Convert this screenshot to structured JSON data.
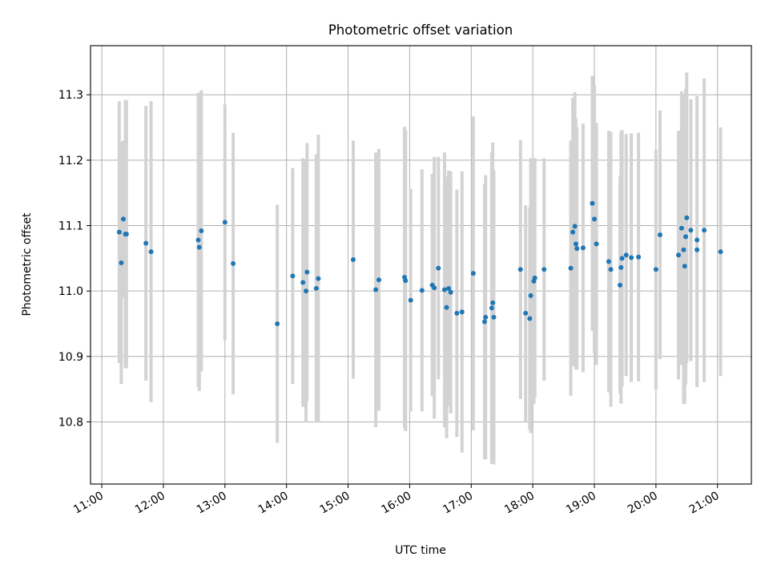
{
  "chart_data": {
    "type": "scatter",
    "title": "Photometric offset variation",
    "xlabel": "UTC time",
    "ylabel": "Photometric offset",
    "xlim": [
      "10:49",
      "21:33"
    ],
    "ylim": [
      10.705,
      11.375
    ],
    "grid": true,
    "x_ticks": [
      "11:00",
      "12:00",
      "13:00",
      "14:00",
      "15:00",
      "16:00",
      "17:00",
      "18:00",
      "19:00",
      "20:00",
      "21:00"
    ],
    "y_ticks": [
      "10.8",
      "10.9",
      "11.0",
      "11.1",
      "11.2",
      "11.3"
    ],
    "point_color": "#1f77b4",
    "errorbar_color": "#d3d3d3",
    "series": [
      {
        "x": [
          "11:17",
          "11:19",
          "11:21",
          "11:23",
          "11:24",
          "11:43",
          "11:48",
          "12:34",
          "12:35",
          "12:37",
          "13:00",
          "13:08",
          "13:51",
          "14:06",
          "14:16",
          "14:19",
          "14:20",
          "14:29",
          "14:31",
          "15:05",
          "15:27",
          "15:30",
          "15:55",
          "15:56",
          "16:01",
          "16:12",
          "16:22",
          "16:24",
          "16:28",
          "16:34",
          "16:36",
          "16:38",
          "16:40",
          "16:46",
          "16:51",
          "17:02",
          "17:13",
          "17:14",
          "17:20",
          "17:21",
          "17:22",
          "17:48",
          "17:53",
          "17:57",
          "17:58",
          "18:01",
          "18:02",
          "18:11",
          "18:37",
          "18:39",
          "18:41",
          "18:42",
          "18:43",
          "18:49",
          "18:58",
          "19:00",
          "19:02",
          "19:14",
          "19:16",
          "19:25",
          "19:26",
          "19:27",
          "19:31",
          "19:36",
          "19:43",
          "20:00",
          "20:04",
          "20:22",
          "20:25",
          "20:27",
          "20:28",
          "20:29",
          "20:30",
          "20:34",
          "20:40",
          "20:40",
          "20:47",
          "21:03"
        ],
        "y": [
          11.09,
          11.043,
          11.11,
          11.087,
          11.087,
          11.073,
          11.06,
          11.078,
          11.067,
          11.092,
          11.105,
          11.042,
          10.95,
          11.023,
          11.013,
          11.0,
          11.029,
          11.004,
          11.019,
          11.048,
          11.002,
          11.017,
          11.021,
          11.016,
          10.986,
          11.001,
          11.009,
          11.005,
          11.035,
          11.002,
          10.975,
          11.004,
          10.998,
          10.966,
          10.968,
          11.027,
          10.953,
          10.96,
          10.974,
          10.982,
          10.96,
          11.033,
          10.966,
          10.958,
          10.993,
          11.015,
          11.02,
          11.033,
          11.035,
          11.09,
          11.099,
          11.072,
          11.065,
          11.066,
          11.134,
          11.11,
          11.072,
          11.045,
          11.033,
          11.009,
          11.036,
          11.05,
          11.055,
          11.051,
          11.052,
          11.033,
          11.086,
          11.055,
          11.096,
          11.063,
          11.038,
          11.083,
          11.112,
          11.093,
          11.078,
          11.063,
          11.093,
          11.06
        ],
        "yerr": [
          0.2,
          0.185,
          0.12,
          0.205,
          0.205,
          0.21,
          0.23,
          0.225,
          0.22,
          0.215,
          0.18,
          0.2,
          0.182,
          0.165,
          0.19,
          0.2,
          0.197,
          0.205,
          0.22,
          0.182,
          0.21,
          0.2,
          0.23,
          0.23,
          0.17,
          0.185,
          0.17,
          0.2,
          0.17,
          0.21,
          0.2,
          0.18,
          0.185,
          0.189,
          0.215,
          0.24,
          0.21,
          0.217,
          0.238,
          0.245,
          0.225,
          0.198,
          0.165,
          0.17,
          0.21,
          0.188,
          0.183,
          0.17,
          0.195,
          0.205,
          0.205,
          0.192,
          0.185,
          0.19,
          0.195,
          0.205,
          0.185,
          0.2,
          0.21,
          0.166,
          0.208,
          0.196,
          0.185,
          0.19,
          0.19,
          0.183,
          0.19,
          0.19,
          0.209,
          0.236,
          0.21,
          0.226,
          0.222,
          0.2,
          0.22,
          0.21,
          0.232,
          0.19
        ]
      }
    ]
  }
}
